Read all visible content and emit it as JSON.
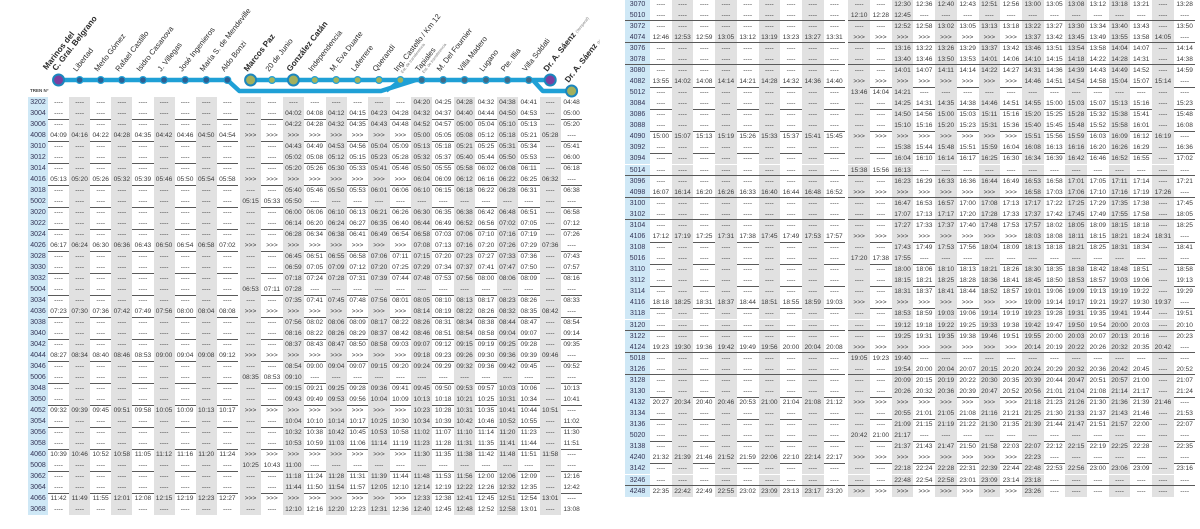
{
  "header": {
    "train_column_label": "TREN N°"
  },
  "colors": {
    "line": "#1fa0d6",
    "train_column": "#cfe8f6",
    "shade": "#e1e1e1",
    "terminal_purple": "#7b3fa0",
    "hub_olive": "#a3b05c"
  },
  "stations": [
    {
      "name": "Marinos del",
      "name2": "C. Gral. Belgrano",
      "bold": true,
      "dot": "purple"
    },
    {
      "name": "Libertad",
      "dot": "blue"
    },
    {
      "name": "Merlo Gómez",
      "dot": "blue"
    },
    {
      "name": "Rafael Castillo",
      "dot": "blue"
    },
    {
      "name": "Isidro Casanova",
      "dot": "blue"
    },
    {
      "name": "J. Villegas",
      "dot": "blue"
    },
    {
      "name": "José Ingenieros",
      "dot": "blue"
    },
    {
      "name": "María S. de Mendeville",
      "dot": "blue"
    },
    {
      "name": "Aldo Bonzi",
      "dot": "blue"
    },
    {
      "name": "Marcos Paz",
      "bold": true,
      "dot": "hub"
    },
    {
      "name": "20 de Junio",
      "dot": "green"
    },
    {
      "name": "González Catán",
      "bold": true,
      "dot": "hub"
    },
    {
      "name": "Independencia",
      "dot": "green"
    },
    {
      "name": "M. Eva Duarte",
      "dot": "green"
    },
    {
      "name": "Laferrere",
      "dot": "green"
    },
    {
      "name": "Querandí",
      "dot": "green"
    },
    {
      "name": "Ing. Castello / Km 12",
      "note": "Est. de transferencia",
      "dot": "green"
    },
    {
      "name": "Tapiales",
      "note": "Est. de transferencia",
      "dot": "steel"
    },
    {
      "name": "M. Del Fournier",
      "dot": "steel"
    },
    {
      "name": "Villa Madero",
      "dot": "steel"
    },
    {
      "name": "Lugano",
      "dot": "steel"
    },
    {
      "name": "Pte. Illia",
      "dot": "steel"
    },
    {
      "name": "Villa Soldati",
      "dot": "steel"
    },
    {
      "name": "Dr. A. Sáenz",
      "note": "(Temporal)",
      "bold": true,
      "dot": "purple"
    },
    {
      "name": "Dr. A. Sáenz",
      "note": "(Nueva)",
      "bold": true,
      "dot": "hub"
    }
  ],
  "tables": [
    {
      "rows": [
        {
          "train": "3202",
          "times": "---- ---- ---- ---- ---- ---- ---- ---- ---- ---- ---- ---- ---- ---- ---- ---- ---- 04:20 04:25 04:28 04:32 04:38 04:41 ---- 04:48"
        },
        {
          "train": "3004",
          "times": "---- ---- ---- ---- ---- ---- ---- ---- ---- ---- ---- 04:02 04:08 04:12 04:15 04:23 04:28 04:32 04:37 04:40 04:44 04:50 04:53 ---- 05:00"
        },
        {
          "train": "3006",
          "times": "---- ---- ---- ---- ---- ---- ---- ---- ---- ---- ---- 04:22 04:28 04:32 04:35 04:43 04:48 04:52 04:57 05:00 05:04 05:10 05:13 ---- 05:20"
        },
        {
          "train": "4008",
          "times": "04:09 04:16 04:22 04:28 04:35 04:42 04:46 04:50 04:54 >>> >>> >>> >>> >>> >>> >>> >>> 05:00 05:05 05:08 05:12 05:18 05:21 05:28 ----"
        },
        {
          "train": "3010",
          "times": "---- ---- ---- ---- ---- ---- ---- ---- ---- ---- ---- 04:43 04:49 04:53 04:56 05:04 05:09 05:13 05:18 05:21 05:25 05:31 05:34 ---- 05:41"
        },
        {
          "train": "3012",
          "times": "---- ---- ---- ---- ---- ---- ---- ---- ---- ---- ---- 05:02 05:08 05:12 05:15 05:23 05:28 05:32 05:37 05:40 05:44 05:50 05:53 ---- 06:00"
        },
        {
          "train": "3014",
          "times": "---- ---- ---- ---- ---- ---- ---- ---- ---- ---- ---- 05:20 05:26 05:30 05:33 05:41 05:46 05:50 05:55 05:58 06:02 06:08 06:11 ---- 06:18"
        },
        {
          "train": "4016",
          "times": "05:13 05:20 05:26 05:32 05:39 05:46 05:50 05:54 05:58 >>> >>> >>> >>> >>> >>> >>> >>> 06:04 06:09 06:12 06:16 06:22 06:25 06:32 ----"
        },
        {
          "train": "3018",
          "times": "---- ---- ---- ---- ---- ---- ---- ---- ---- ---- ---- 05:40 05:46 05:50 05:53 06:01 06:06 06:10 06:15 06:18 06:22 06:28 06:31 ---- 06:38"
        },
        {
          "train": "5002",
          "times": "---- ---- ---- ---- ---- ---- ---- ---- ---- 05:15 05:33 05:50 ---- ---- ---- ---- ---- ---- ---- ---- ---- ---- ---- ---- ----"
        },
        {
          "train": "3020",
          "times": "---- ---- ---- ---- ---- ---- ---- ---- ---- ---- ---- 06:00 06:06 06:10 06:13 06:21 06:26 06:30 06:35 06:38 06:42 06:48 06:51 ---- 06:58"
        },
        {
          "train": "3022",
          "times": "---- ---- ---- ---- ---- ---- ---- ---- ---- ---- ---- 06:14 06:20 06:24 06:27 06:35 06:40 06:44 06:49 06:52 06:56 07:02 07:05 ---- 07:12"
        },
        {
          "train": "3024",
          "times": "---- ---- ---- ---- ---- ---- ---- ---- ---- ---- ---- 06:28 06:34 06:38 06:41 06:49 06:54 06:58 07:03 07:06 07:10 07:16 07:19 ---- 07:26"
        },
        {
          "train": "4026",
          "times": "06:17 06:24 06:30 06:36 06:43 06:50 06:54 06:58 07:02 >>> >>> >>> >>> >>> >>> >>> >>> 07:08 07:13 07:16 07:20 07:26 07:29 07:36 ----"
        },
        {
          "train": "3028",
          "times": "---- ---- ---- ---- ---- ---- ---- ---- ---- ---- ---- 06:45 06:51 06:55 06:58 07:06 07:11 07:15 07:20 07:23 07:27 07:33 07:36 ---- 07:43"
        },
        {
          "train": "3030",
          "times": "---- ---- ---- ---- ---- ---- ---- ---- ---- ---- ---- 06:59 07:05 07:09 07:12 07:20 07:25 07:29 07:34 07:37 07:41 07:47 07:50 ---- 07:57"
        },
        {
          "train": "3032",
          "times": "---- ---- ---- ---- ---- ---- ---- ---- ---- ---- ---- 07:18 07:24 07:28 07:31 07:39 07:44 07:48 07:53 07:56 08:00 08:06 08:09 ---- 08:16"
        },
        {
          "train": "5004",
          "times": "---- ---- ---- ---- ---- ---- ---- ---- ---- 06:53 07:11 07:28 ---- ---- ---- ---- ---- ---- ---- ---- ---- ---- ---- ---- ----"
        },
        {
          "train": "3034",
          "times": "---- ---- ---- ---- ---- ---- ---- ---- ---- ---- ---- 07:35 07:41 07:45 07:48 07:56 08:01 08:05 08:10 08:13 08:17 08:23 08:26 ---- 08:33"
        },
        {
          "train": "4036",
          "times": "07:23 07:30 07:36 07:42 07:49 07:56 08:00 08:04 08:08 >>> >>> >>> >>> >>> >>> >>> >>> 08:14 08:19 08:22 08:26 08:32 08:35 08:42 ----"
        },
        {
          "train": "3038",
          "times": "---- ---- ---- ---- ---- ---- ---- ---- ---- ---- ---- 07:56 08:02 08:06 08:09 08:17 08:22 08:26 08:31 08:34 08:38 08:44 08:47 ---- 08:54"
        },
        {
          "train": "3040",
          "times": "---- ---- ---- ---- ---- ---- ---- ---- ---- ---- ---- 08:16 08:22 08:26 08:29 08:37 08:42 08:46 08:51 08:54 08:58 09:04 09:07 ---- 09:14"
        },
        {
          "train": "3042",
          "times": "---- ---- ---- ---- ---- ---- ---- ---- ---- ---- ---- 08:37 08:43 08:47 08:50 08:58 09:03 09:07 09:12 09:15 09:19 09:25 09:28 ---- 09:35"
        },
        {
          "train": "4044",
          "times": "08:27 08:34 08:40 08:46 08:53 09:00 09:04 09:08 09:12 >>> >>> >>> >>> >>> >>> >>> >>> 09:18 09:23 09:26 09:30 09:36 09:39 09:46 ----"
        },
        {
          "train": "3046",
          "times": "---- ---- ---- ---- ---- ---- ---- ---- ---- ---- ---- 08:54 09:00 09:04 09:07 09:15 09:20 09:24 09:29 09:32 09:36 09:42 09:45 ---- 09:52"
        },
        {
          "train": "5006",
          "times": "---- ---- ---- ---- ---- ---- ---- ---- ---- 08:35 08:53 09:10 ---- ---- ---- ---- ---- ---- ---- ---- ---- ---- ---- ---- ----"
        },
        {
          "train": "3048",
          "times": "---- ---- ---- ---- ---- ---- ---- ---- ---- ---- ---- 09:15 09:21 09:25 09:28 09:36 09:41 09:45 09:50 09:53 09:57 10:03 10:06 ---- 10:13"
        },
        {
          "train": "3050",
          "times": "---- ---- ---- ---- ---- ---- ---- ---- ---- ---- ---- 09:43 09:49 09:53 09:56 10:04 10:09 10:13 10:18 10:21 10:25 10:31 10:34 ---- 10:41"
        },
        {
          "train": "4052",
          "times": "09:32 09:39 09:45 09:51 09:58 10:05 10:09 10:13 10:17 >>> >>> >>> >>> >>> >>> >>> >>> 10:23 10:28 10:31 10:35 10:41 10:44 10:51 ----"
        },
        {
          "train": "3054",
          "times": "---- ---- ---- ---- ---- ---- ---- ---- ---- ---- ---- 10:04 10:10 10:14 10:17 10:25 10:30 10:34 10:39 10:42 10:46 10:52 10:55 ---- 11:02"
        },
        {
          "train": "3056",
          "times": "---- ---- ---- ---- ---- ---- ---- ---- ---- ---- ---- 10:32 10:38 10:42 10:45 10:53 10:58 11:02 11:07 11:10 11:14 11:20 11:23 ---- 11:30"
        },
        {
          "train": "3058",
          "times": "---- ---- ---- ---- ---- ---- ---- ---- ---- ---- ---- 10:53 10:59 11:03 11:06 11:14 11:19 11:23 11:28 11:31 11:35 11:41 11:44 ---- 11:51"
        },
        {
          "train": "4060",
          "times": "10:39 10:46 10:52 10:58 11:05 11:12 11:16 11:20 11:24 >>> >>> >>> >>> >>> >>> >>> >>> 11:30 11:35 11:38 11:42 11:48 11:51 11:58 ----"
        },
        {
          "train": "5008",
          "times": "---- ---- ---- ---- ---- ---- ---- ---- ---- 10:25 10:43 11:00 ---- ---- ---- ---- ---- ---- ---- ---- ---- ---- ---- ---- ----"
        },
        {
          "train": "3062",
          "times": "---- ---- ---- ---- ---- ---- ---- ---- ---- ---- ---- 11:18 11:24 11:28 11:31 11:39 11:44 11:48 11:53 11:56 12:00 12:06 12:09 ---- 12:16"
        },
        {
          "train": "3064",
          "times": "---- ---- ---- ---- ---- ---- ---- ---- ---- ---- ---- 11:44 11:50 11:54 11:57 12:05 12:10 12:14 12:19 12:22 12:26 12:32 12:35 ---- 12:42"
        },
        {
          "train": "4066",
          "times": "11:42 11:49 11:55 12:01 12:08 12:15 12:19 12:23 12:27 >>> >>> >>> >>> >>> >>> >>> >>> 12:33 12:38 12:41 12:45 12:51 12:54 13:01 ----"
        },
        {
          "train": "3068",
          "times": "---- ---- ---- ---- ---- ---- ---- ---- ---- ---- ---- 12:10 12:16 12:20 12:23 12:31 12:36 12:40 12:45 12:48 12:52 12:58 13:01 ---- 13:08"
        }
      ]
    },
    {
      "rows": [
        {
          "train": "3070",
          "times": "---- ---- ---- ---- ---- ---- ---- ---- ---- ---- ---- 12:30 12:36 12:40 12:43 12:51 12:56 13:00 13:05 13:08 13:12 13:18 13:21 ---- 13:28"
        },
        {
          "train": "5010",
          "times": "---- ---- ---- ---- ---- ---- ---- ---- ---- 12:10 12:28 12:45 ---- ---- ---- ---- ---- ---- ---- ---- ---- ---- ---- ---- ----"
        },
        {
          "train": "3072",
          "times": "---- ---- ---- ---- ---- ---- ---- ---- ---- ---- ---- 12:52 12:58 13:02 13:05 13:13 13:18 13:22 13:27 13:30 13:34 13:40 13:43 ---- 13:50"
        },
        {
          "train": "4074",
          "times": "12:46 12:53 12:59 13:05 13:12 13:19 13:23 13:27 13:31 >>> >>> >>> >>> >>> >>> >>> >>> 13:37 13:42 13:45 13:49 13:55 13:58 14:05 ----"
        },
        {
          "train": "3076",
          "times": "---- ---- ---- ---- ---- ---- ---- ---- ---- ---- ---- 13:16 13:22 13:26 13:29 13:37 13:42 13:46 13:51 13:54 13:58 14:04 14:07 ---- 14:14"
        },
        {
          "train": "3078",
          "times": "---- ---- ---- ---- ---- ---- ---- ---- ---- ---- ---- 13:40 13:46 13:50 13:53 14:01 14:06 14:10 14:15 14:18 14:22 14:28 14:31 ---- 14:38"
        },
        {
          "train": "3080",
          "times": "---- ---- ---- ---- ---- ---- ---- ---- ---- ---- ---- 14:01 14:07 14:11 14:14 14:22 14:27 14:31 14:36 14:39 14:43 14:49 14:52 ---- 14:59"
        },
        {
          "train": "4082",
          "times": "13:55 14:02 14:08 14:14 14:21 14:28 14:32 14:36 14:40 >>> >>> >>> >>> >>> >>> >>> >>> 14:46 14:51 14:54 14:58 15:04 15:07 15:14 ----"
        },
        {
          "train": "5012",
          "times": "---- ---- ---- ---- ---- ---- ---- ---- ---- 13:46 14:04 14:21 ---- ---- ---- ---- ---- ---- ---- ---- ---- ---- ---- ---- ----"
        },
        {
          "train": "3084",
          "times": "---- ---- ---- ---- ---- ---- ---- ---- ---- ---- ---- 14:25 14:31 14:35 14:38 14:46 14:51 14:55 15:00 15:03 15:07 15:13 15:16 ---- 15:23"
        },
        {
          "train": "3086",
          "times": "---- ---- ---- ---- ---- ---- ---- ---- ---- ---- ---- 14:50 14:56 15:00 15:03 15:11 15:16 15:20 15:25 15:28 15:32 15:38 15:41 ---- 15:48"
        },
        {
          "train": "3088",
          "times": "---- ---- ---- ---- ---- ---- ---- ---- ---- ---- ---- 15:10 15:16 15:20 15:23 15:31 15:36 15:40 15:45 15:48 15:52 15:58 16:01 ---- 16:08"
        },
        {
          "train": "4090",
          "times": "15:00 15:07 15:13 15:19 15:26 15:33 15:37 15:41 15:45 >>> >>> >>> >>> >>> >>> >>> >>> 15:51 15:56 15:59 16:03 16:09 16:12 16:19 ----"
        },
        {
          "train": "3092",
          "times": "---- ---- ---- ---- ---- ---- ---- ---- ---- ---- ---- 15:38 15:44 15:48 15:51 15:59 16:04 16:08 16:13 16:16 16:20 16:26 16:29 ---- 16:36"
        },
        {
          "train": "3094",
          "times": "---- ---- ---- ---- ---- ---- ---- ---- ---- ---- ---- 16:04 16:10 16:14 16:17 16:25 16:30 16:34 16:39 16:42 16:46 16:52 16:55 ---- 17:02"
        },
        {
          "train": "5014",
          "times": "---- ---- ---- ---- ---- ---- ---- ---- ---- 15:38 15:56 16:13 ---- ---- ---- ---- ---- ---- ---- ---- ---- ---- ---- ---- ----"
        },
        {
          "train": "3096",
          "times": "---- ---- ---- ---- ---- ---- ---- ---- ---- ---- ---- 16:23 16:29 16:33 16:36 16:44 16:49 16:53 16:58 17:01 17:05 17:11 17:14 ---- 17:21"
        },
        {
          "train": "4098",
          "times": "16:07 16:14 16:20 16:26 16:33 16:40 16:44 16:48 16:52 >>> >>> >>> >>> >>> >>> >>> >>> 16:58 17:03 17:06 17:10 17:16 17:19 17:26 ----"
        },
        {
          "train": "3100",
          "times": "---- ---- ---- ---- ---- ---- ---- ---- ---- ---- ---- 16:47 16:53 16:57 17:00 17:08 17:13 17:17 17:22 17:25 17:29 17:35 17:38 ---- 17:45"
        },
        {
          "train": "3102",
          "times": "---- ---- ---- ---- ---- ---- ---- ---- ---- ---- ---- 17:07 17:13 17:17 17:20 17:28 17:33 17:37 17:42 17:45 17:49 17:55 17:58 ---- 18:05"
        },
        {
          "train": "3104",
          "times": "---- ---- ---- ---- ---- ---- ---- ---- ---- ---- ---- 17:27 17:33 17:37 17:40 17:48 17:53 17:57 18:02 18:05 18:09 18:15 18:18 ---- 18:25"
        },
        {
          "train": "4106",
          "times": "17:12 17:19 17:25 17:31 17:38 17:45 17:49 17:53 17:57 >>> >>> >>> >>> >>> >>> >>> >>> 18:03 18:08 18:11 18:15 18:21 18:24 18:31 ----"
        },
        {
          "train": "3108",
          "times": "---- ---- ---- ---- ---- ---- ---- ---- ---- ---- ---- 17:43 17:49 17:53 17:56 18:04 18:09 18:13 18:18 18:21 18:25 18:31 18:34 ---- 18:41"
        },
        {
          "train": "5016",
          "times": "---- ---- ---- ---- ---- ---- ---- ---- ---- 17:20 17:38 17:55 ---- ---- ---- ---- ---- ---- ---- ---- ---- ---- ---- ---- ----"
        },
        {
          "train": "3110",
          "times": "---- ---- ---- ---- ---- ---- ---- ---- ---- ---- ---- 18:00 18:06 18:10 18:13 18:21 18:26 18:30 18:35 18:38 18:42 18:48 18:51 ---- 18:58"
        },
        {
          "train": "3112",
          "times": "---- ---- ---- ---- ---- ---- ---- ---- ---- ---- ---- 18:15 18:21 18:25 18:28 18:36 18:41 18:45 18:50 18:53 18:57 19:03 19:06 ---- 19:13"
        },
        {
          "train": "3114",
          "times": "---- ---- ---- ---- ---- ---- ---- ---- ---- ---- ---- 18:31 18:37 18:41 18:44 18:52 18:57 19:01 19:06 19:09 19:13 19:19 19:22 ---- 19:29"
        },
        {
          "train": "4116",
          "times": "18:18 18:25 18:31 18:37 18:44 18:51 18:55 18:59 19:03 >>> >>> >>> >>> >>> >>> >>> >>> 19:09 19:14 19:17 19:21 19:27 19:30 19:37 ----"
        },
        {
          "train": "3118",
          "times": "---- ---- ---- ---- ---- ---- ---- ---- ---- ---- ---- 18:53 18:59 19:03 19:06 19:14 19:19 19:23 19:28 19:31 19:35 19:41 19:44 ---- 19:51"
        },
        {
          "train": "3120",
          "times": "---- ---- ---- ---- ---- ---- ---- ---- ---- ---- ---- 19:12 19:18 19:22 19:25 19:33 19:38 19:42 19:47 19:50 19:54 20:00 20:03 ---- 20:10"
        },
        {
          "train": "3122",
          "times": "---- ---- ---- ---- ---- ---- ---- ---- ---- ---- ---- 19:25 19:31 19:35 19:38 19:46 19:51 19:55 20:00 20:03 20:07 20:13 20:16 ---- 20:23"
        },
        {
          "train": "4124",
          "times": "19:23 19:30 19:36 19:42 19:49 19:56 20:00 20:04 20:08 >>> >>> >>> >>> >>> >>> >>> >>> 20:14 20:19 20:22 20:26 20:32 20:35 20:42 ----"
        },
        {
          "train": "5018",
          "times": "---- ---- ---- ---- ---- ---- ---- ---- ---- 19:05 19:23 19:40 ---- ---- ---- ---- ---- ---- ---- ---- ---- ---- ---- ---- ----"
        },
        {
          "train": "3126",
          "times": "---- ---- ---- ---- ---- ---- ---- ---- ---- ---- ---- 19:54 20:00 20:04 20:07 20:15 20:20 20:24 20:29 20:32 20:36 20:42 20:45 ---- 20:52"
        },
        {
          "train": "3128",
          "times": "---- ---- ---- ---- ---- ---- ---- ---- ---- ---- ---- 20:09 20:15 20:19 20:22 20:30 20:35 20:39 20:44 20:47 20:51 20:57 21:00 ---- 21:07"
        },
        {
          "train": "3130",
          "times": "---- ---- ---- ---- ---- ---- ---- ---- ---- ---- ---- 20:26 20:32 20:36 20:39 20:47 20:52 20:56 21:01 21:04 21:08 21:14 21:17 ---- 21:24"
        },
        {
          "train": "4132",
          "times": "20:27 20:34 20:40 20:46 20:53 21:00 21:04 21:08 21:12 >>> >>> >>> >>> >>> >>> >>> >>> 21:18 21:23 21:26 21:30 21:36 21:39 21:46 ----"
        },
        {
          "train": "3134",
          "times": "---- ---- ---- ---- ---- ---- ---- ---- ---- ---- ---- 20:55 21:01 21:05 21:08 21:16 21:21 21:25 21:30 21:33 21:37 21:43 21:46 ---- 21:53"
        },
        {
          "train": "3136",
          "times": "---- ---- ---- ---- ---- ---- ---- ---- ---- ---- ---- 21:09 21:15 21:19 21:22 21:30 21:35 21:39 21:44 21:47 21:51 21:57 22:00 ---- 22:07"
        },
        {
          "train": "5020",
          "times": "---- ---- ---- ---- ---- ---- ---- ---- ---- 20:42 21:00 21:17 ---- ---- ---- ---- ---- ---- ---- ---- ---- ---- ---- ---- ----"
        },
        {
          "train": "3138",
          "times": "---- ---- ---- ---- ---- ---- ---- ---- ---- ---- ---- 21:37 21:43 21:47 21:50 21:58 22:03 22:07 22:12 22:15 22:19 22:25 22:28 ---- 22:35"
        },
        {
          "train": "4240",
          "times": "21:32 21:39 21:46 21:52 21:59 22:06 22:10 22:14 22:17 >>> >>> >>> >>> >>> >>> >>> >>> 22:23 ---- ---- ---- ---- ---- ---- ----"
        },
        {
          "train": "3142",
          "times": "---- ---- ---- ---- ---- ---- ---- ---- ---- ---- ---- 22:18 22:24 22:28 22:31 22:39 22:44 22:48 22:53 22:56 23:00 23:06 23:09 ---- 23:16"
        },
        {
          "train": "3246",
          "times": "---- ---- ---- ---- ---- ---- ---- ---- ---- ---- ---- 22:48 22:54 22:58 23:01 23:09 23:14 23:18 ---- ---- ---- ---- ---- ---- ----"
        },
        {
          "train": "4248",
          "times": "22:35 22:42 22:49 22:55 23:02 23:09 23:13 23:17 23:20 >>> >>> >>> >>> >>> >>> >>> >>> 23:26 ---- ---- ---- ---- ---- ---- ----"
        }
      ]
    }
  ]
}
